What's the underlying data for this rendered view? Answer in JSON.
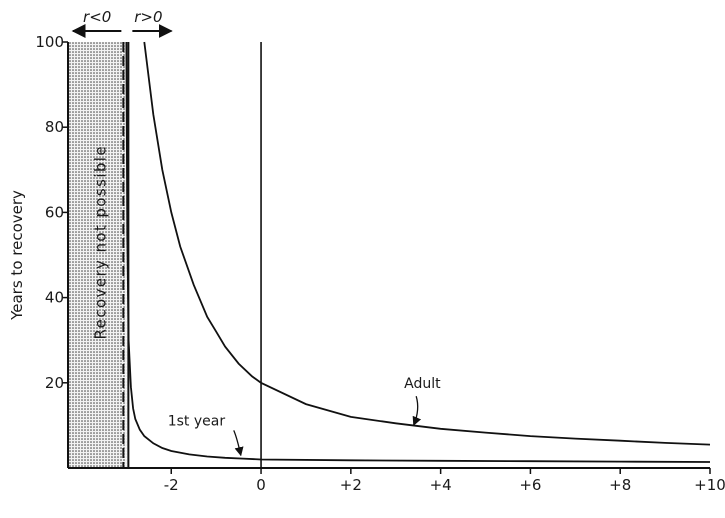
{
  "chart_data": {
    "type": "line",
    "title": "",
    "xlabel": "",
    "ylabel": "Years to recovery",
    "xlim": [
      -4.3,
      10
    ],
    "ylim": [
      0,
      100
    ],
    "x_ticks": [
      -2,
      0,
      2,
      4,
      6,
      8,
      10
    ],
    "x_tick_labels": [
      "-2",
      "0",
      "+2",
      "+4",
      "+6",
      "+8",
      "+10"
    ],
    "y_ticks": [
      20,
      40,
      60,
      80,
      100
    ],
    "y_tick_labels": [
      "20",
      "40",
      "60",
      "80",
      "100"
    ],
    "grid": false,
    "shaded_region": {
      "x_range": [
        -4.3,
        -3.0
      ],
      "label": "Recovery not possible"
    },
    "boundary_labels": {
      "left": "r<0",
      "right": "r>0"
    },
    "reference_line_x": 0,
    "series": [
      {
        "name": "Adult",
        "x": [
          -2.6,
          -2.4,
          -2.2,
          -2.0,
          -1.8,
          -1.5,
          -1.2,
          -1.0,
          -0.8,
          -0.5,
          -0.2,
          0,
          1,
          2,
          3,
          4,
          5,
          6,
          7,
          8,
          9,
          10
        ],
        "y": [
          100,
          83,
          70,
          60,
          52,
          43,
          35.5,
          32,
          28.5,
          24.5,
          21.5,
          20,
          15,
          12,
          10.5,
          9.2,
          8.3,
          7.5,
          6.9,
          6.4,
          5.9,
          5.5
        ]
      },
      {
        "name": "1st year",
        "x": [
          -3.0,
          -2.98,
          -2.95,
          -2.9,
          -2.85,
          -2.8,
          -2.7,
          -2.6,
          -2.4,
          -2.2,
          -2.0,
          -1.6,
          -1.2,
          -0.8,
          -0.4,
          0,
          2,
          4,
          6,
          8,
          10
        ],
        "y": [
          100,
          55,
          30,
          19,
          14,
          11.5,
          9,
          7.5,
          5.8,
          4.7,
          4.0,
          3.2,
          2.7,
          2.4,
          2.2,
          2.0,
          1.8,
          1.7,
          1.6,
          1.5,
          1.4
        ]
      }
    ]
  }
}
